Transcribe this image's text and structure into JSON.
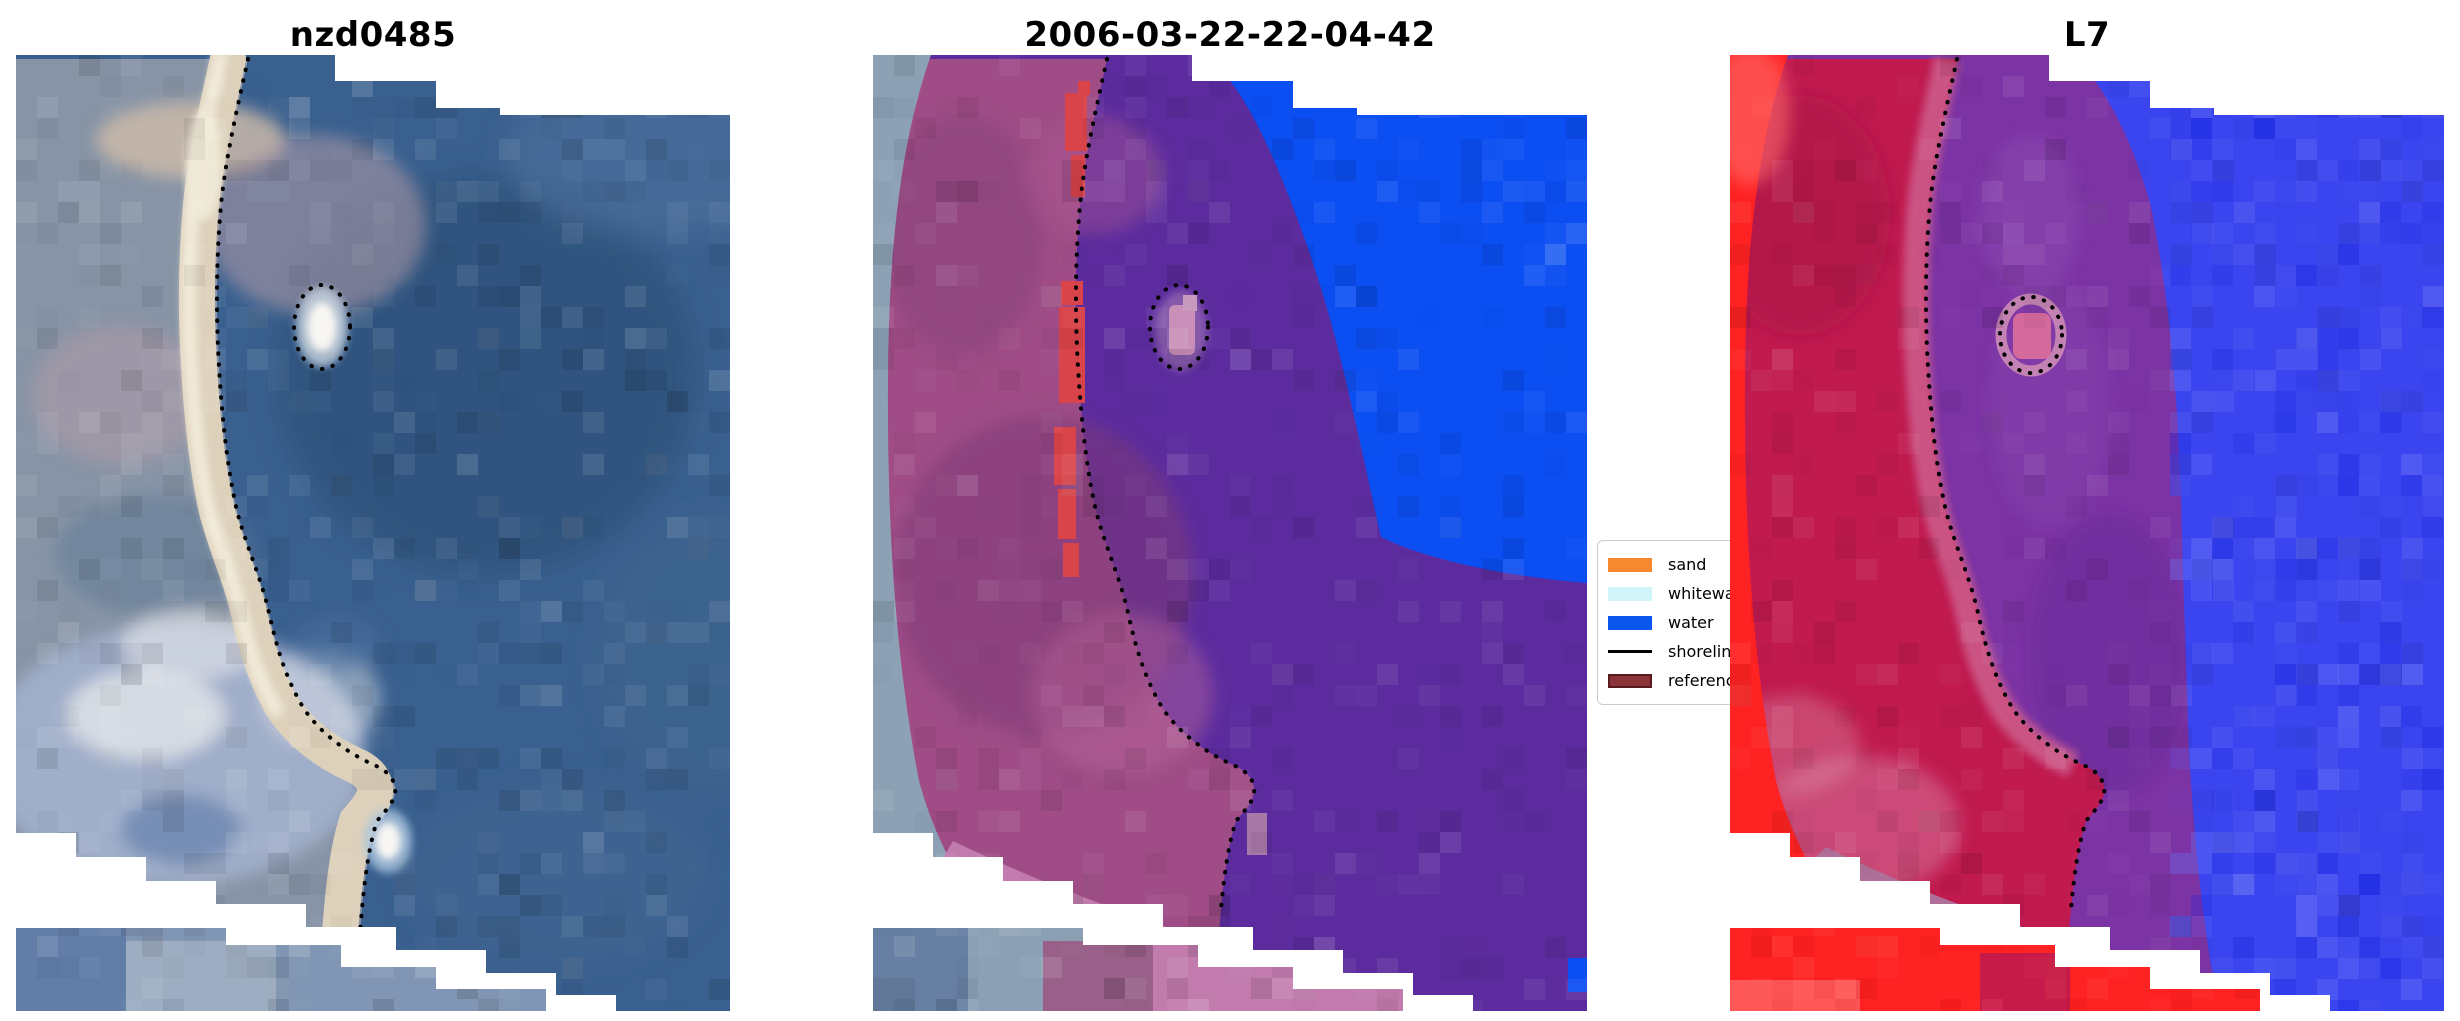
{
  "figure": {
    "background": "#ffffff",
    "kind": "matplotlib-style three-panel satellite shoreline detection figure"
  },
  "panels": [
    {
      "title": "nzd0485",
      "kind": "true-color satellite image",
      "description": "RGB image: grey/pink/tan land and clouds left, cream beach band, dark slate-blue sea right, dotted black detected shoreline, bright white feature circled by dots, stepped white no-data corners, detached image strip at bottom left"
    },
    {
      "title": "2006-03-22-22-04-42",
      "kind": "classified image overlay",
      "description": "Same scene with class overlay: magenta land mask, red sand pixels along shore, dark purple nearshore water, bright blue offshore water, pink lower band, grey unclassified edge strip, dotted shoreline"
    },
    {
      "title": "L7",
      "kind": "Landsat 7 classification view",
      "description": "Same scene: bright red scene edge, crimson land probability, purple nearshore water, noisy blue offshore water, mauve lower band, dotted shoreline"
    }
  ],
  "legend": {
    "items": [
      {
        "label": "sand",
        "visible_label": "sand",
        "type": "patch",
        "color": "#f6882f"
      },
      {
        "label": "whitewater",
        "visible_label": "whitew",
        "type": "patch",
        "color": "#d2f5fa"
      },
      {
        "label": "water",
        "visible_label": "water",
        "type": "patch",
        "color": "#0b57ee"
      },
      {
        "label": "shoreline",
        "visible_label": "shorel",
        "type": "line",
        "color": "#000000"
      },
      {
        "label": "reference shoreline",
        "visible_label": "referen",
        "type": "patch",
        "color": "#8b3338",
        "edge_color": "#581a1f"
      }
    ],
    "note": "legend box is clipped on its right side by the L7 panel"
  },
  "chart_data": {
    "type": "image-grid",
    "n_panels": 3,
    "panel_titles": [
      "nzd0485",
      "2006-03-22-22-04-42",
      "L7"
    ],
    "shared_content": "coastal scene with dotted black detected shoreline curve and dotted circle around a bright offshore feature; stepped white no-data wedges at top-right and bottom-left; detached bottom image strip",
    "legend_entries": [
      "sand",
      "whitewater",
      "water",
      "shoreline",
      "reference shoreline"
    ],
    "legend_position": "between panel 2 and panel 3, vertically centered"
  },
  "colors": {
    "background": "#ffffff",
    "title_color": "#000000",
    "shoreline_dots": "#000000",
    "p1": {
      "water": "#3a608f",
      "water_dark": "#2d5076",
      "water_light": "#50729e",
      "land_gray": "#8794a6",
      "land_pink": "#b49ca8",
      "land_tan": "#cbbaa9",
      "land_lavender": "#a2b0cd",
      "cloud": "#e7e9ec",
      "land_blue": "#5d7ca8",
      "beach": "#ddd1bb",
      "beach_bright": "#f1ead9",
      "blob": "#f8f6f2",
      "blob_halo": "#bfccda",
      "strip": "#8096b4",
      "strip_dark": "#5d7aa6",
      "strip_light": "#a2b3c6"
    },
    "p2": {
      "edge": "#8da1b5",
      "land": "#a04d87",
      "land_dark": "#7d3b76",
      "land_light": "#b5639a",
      "sand_red": "#d9434a",
      "water": "#5c2c9e",
      "blue": "#0b4ef2",
      "pink": "#c17bad",
      "blob": "#c98fb8",
      "patch": "#a878a8",
      "strip_left": "#8ba0b4",
      "strip_dark": "#60799f",
      "strip_magenta": "#9a5a84"
    },
    "p3": {
      "red": "#fe2222",
      "red_light": "#ff6b6b",
      "land": "#c01a4f",
      "land_dark": "#a81545",
      "shore_band": "#cc5f8d",
      "pink_patch": "#d986a8",
      "water": "#7c33a4",
      "water_light": "#8d4bae",
      "water_dark": "#5f2795",
      "blue": "#3a45ef",
      "blue_light": "#6b74f5",
      "blue_dark": "#1724dd",
      "pink": "#d4699c",
      "pink_ring": "#cf8fb5",
      "band": "#b06f99"
    },
    "legend": {
      "sand": "#f6882f",
      "whitewater": "#d2f5fa",
      "water": "#0b57ee",
      "shoreline": "#000000",
      "reference_fill": "#8b3338",
      "reference_edge": "#581a1f"
    }
  }
}
